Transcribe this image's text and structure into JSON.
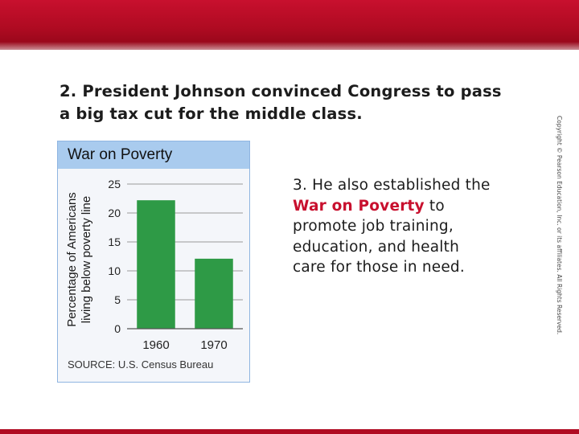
{
  "slide": {
    "point_2": "2. President Johnson convinced Congress to pass a big tax cut for the middle class.",
    "point_3": {
      "before": "3. He also established the ",
      "emphasis": "War on Poverty",
      "after": " to promote job training, education, and health care for those in need."
    },
    "copyright": "Copyright © Pearson Education, Inc. or its affiliates. All Rights Reserved.",
    "colors": {
      "banner": "#c8102e",
      "emphasis": "#c8102e"
    }
  },
  "chart_data": {
    "type": "bar",
    "title": "War on Poverty",
    "ylabel_line1": "Percentage of Americans",
    "ylabel_line2": "living below poverty line",
    "xlabel": "",
    "categories": [
      "1960",
      "1970"
    ],
    "values": [
      22.2,
      12.1
    ],
    "yticks": [
      0,
      5,
      10,
      15,
      20,
      25
    ],
    "ylim": [
      0,
      25
    ],
    "grid": true,
    "bar_color": "#2e9a46",
    "source": "SOURCE: U.S. Census Bureau"
  }
}
